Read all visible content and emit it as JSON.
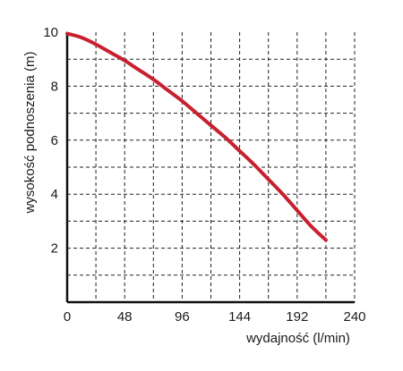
{
  "chart_data": {
    "type": "line",
    "xlabel": "wydajność (l/min)",
    "ylabel": "wysokość podnoszenia (m)",
    "xlim": [
      0,
      240
    ],
    "ylim": [
      0,
      10
    ],
    "x_ticks": [
      0,
      48,
      96,
      144,
      192,
      240
    ],
    "x_tick_labels": [
      "0",
      "48",
      "96",
      "144",
      "192",
      "240"
    ],
    "y_ticks": [
      2,
      4,
      6,
      8,
      10
    ],
    "y_tick_labels": [
      "2",
      "4",
      "6",
      "8",
      "10"
    ],
    "grid": true,
    "grid_x_step": 24,
    "grid_y_step": 1,
    "series": [
      {
        "color": "#c8202e",
        "x": [
          0,
          12,
          24,
          36,
          48,
          60,
          72,
          84,
          96,
          108,
          120,
          132,
          144,
          156,
          168,
          180,
          192,
          204,
          216
        ],
        "y": [
          9.95,
          9.8,
          9.55,
          9.25,
          8.95,
          8.6,
          8.25,
          7.85,
          7.45,
          7.0,
          6.55,
          6.1,
          5.6,
          5.1,
          4.55,
          4.0,
          3.4,
          2.8,
          2.3
        ]
      }
    ]
  }
}
